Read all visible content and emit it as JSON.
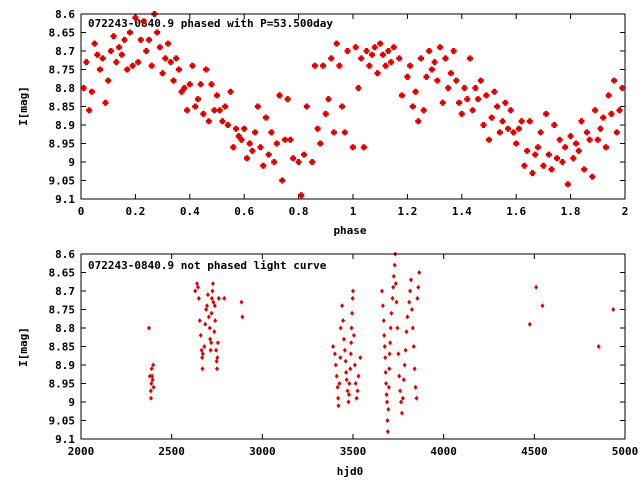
{
  "chart_data": [
    {
      "type": "scatter",
      "title": "072243-0840.9 phased with P=53.500day",
      "xlabel": "phase",
      "ylabel": "I[mag]",
      "xlim": [
        0,
        2
      ],
      "ylim": [
        9.1,
        8.6
      ],
      "y_inverted": true,
      "grid": false,
      "marker_color": "#e00000",
      "marker": "asterisk",
      "x_ticks": [
        "0",
        "0.2",
        "0.4",
        "0.6",
        "0.8",
        "1",
        "1.2",
        "1.4",
        "1.6",
        "1.8",
        "2"
      ],
      "x_tick_values": [
        0,
        0.2,
        0.4,
        0.6,
        0.8,
        1,
        1.2,
        1.4,
        1.6,
        1.8,
        2
      ],
      "y_ticks": [
        "8.6",
        "8.65",
        "8.7",
        "8.75",
        "8.8",
        "8.85",
        "8.9",
        "8.95",
        "9",
        "9.05",
        "9.1"
      ],
      "y_tick_values": [
        8.6,
        8.65,
        8.7,
        8.75,
        8.8,
        8.85,
        8.9,
        8.95,
        9.0,
        9.05,
        9.1
      ],
      "points": [
        [
          0.01,
          8.8
        ],
        [
          0.02,
          8.73
        ],
        [
          0.03,
          8.86
        ],
        [
          0.04,
          8.81
        ],
        [
          0.05,
          8.68
        ],
        [
          0.06,
          8.71
        ],
        [
          0.07,
          8.75
        ],
        [
          0.08,
          8.72
        ],
        [
          0.09,
          8.84
        ],
        [
          0.1,
          8.78
        ],
        [
          0.11,
          8.7
        ],
        [
          0.12,
          8.66
        ],
        [
          0.13,
          8.73
        ],
        [
          0.14,
          8.69
        ],
        [
          0.15,
          8.71
        ],
        [
          0.16,
          8.67
        ],
        [
          0.17,
          8.75
        ],
        [
          0.18,
          8.65
        ],
        [
          0.19,
          8.74
        ],
        [
          0.2,
          8.61
        ],
        [
          0.21,
          8.73
        ],
        [
          0.22,
          8.67
        ],
        [
          0.23,
          8.62
        ],
        [
          0.24,
          8.7
        ],
        [
          0.25,
          8.67
        ],
        [
          0.26,
          8.74
        ],
        [
          0.27,
          8.6
        ],
        [
          0.28,
          8.65
        ],
        [
          0.29,
          8.69
        ],
        [
          0.3,
          8.76
        ],
        [
          0.31,
          8.72
        ],
        [
          0.32,
          8.68
        ],
        [
          0.33,
          8.73
        ],
        [
          0.34,
          8.78
        ],
        [
          0.35,
          8.72
        ],
        [
          0.36,
          8.75
        ],
        [
          0.37,
          8.81
        ],
        [
          0.38,
          8.8
        ],
        [
          0.39,
          8.86
        ],
        [
          0.4,
          8.79
        ],
        [
          0.41,
          8.74
        ],
        [
          0.42,
          8.85
        ],
        [
          0.43,
          8.83
        ],
        [
          0.44,
          8.79
        ],
        [
          0.45,
          8.87
        ],
        [
          0.46,
          8.75
        ],
        [
          0.47,
          8.89
        ],
        [
          0.48,
          8.79
        ],
        [
          0.49,
          8.86
        ],
        [
          0.5,
          8.82
        ],
        [
          0.51,
          8.86
        ],
        [
          0.52,
          8.89
        ],
        [
          0.53,
          8.85
        ],
        [
          0.54,
          8.9
        ],
        [
          0.55,
          8.81
        ],
        [
          0.56,
          8.96
        ],
        [
          0.57,
          8.91
        ],
        [
          0.58,
          8.93
        ],
        [
          0.59,
          8.94
        ],
        [
          0.6,
          8.91
        ],
        [
          0.61,
          8.99
        ],
        [
          0.62,
          8.95
        ],
        [
          0.63,
          8.97
        ],
        [
          0.64,
          8.92
        ],
        [
          0.65,
          8.85
        ],
        [
          0.66,
          8.96
        ],
        [
          0.67,
          9.01
        ],
        [
          0.68,
          8.88
        ],
        [
          0.69,
          8.98
        ],
        [
          0.7,
          8.92
        ],
        [
          0.71,
          9.0
        ],
        [
          0.72,
          8.95
        ],
        [
          0.73,
          8.82
        ],
        [
          0.74,
          9.05
        ],
        [
          0.75,
          8.94
        ],
        [
          0.76,
          8.83
        ],
        [
          0.77,
          8.94
        ],
        [
          0.78,
          8.99
        ],
        [
          0.8,
          9.0
        ],
        [
          0.81,
          9.09
        ],
        [
          0.82,
          8.98
        ],
        [
          0.83,
          8.85
        ],
        [
          0.85,
          9.0
        ],
        [
          0.86,
          8.74
        ],
        [
          0.87,
          8.91
        ],
        [
          0.88,
          8.95
        ],
        [
          0.89,
          8.74
        ],
        [
          0.9,
          8.87
        ],
        [
          0.91,
          8.83
        ],
        [
          0.92,
          8.72
        ],
        [
          0.93,
          8.92
        ],
        [
          0.94,
          8.68
        ],
        [
          0.95,
          8.74
        ],
        [
          0.96,
          8.85
        ],
        [
          0.97,
          8.92
        ],
        [
          0.98,
          8.7
        ],
        [
          1.0,
          8.96
        ],
        [
          1.01,
          8.69
        ],
        [
          1.02,
          8.8
        ],
        [
          1.03,
          8.72
        ],
        [
          1.04,
          8.96
        ],
        [
          1.05,
          8.7
        ],
        [
          1.06,
          8.74
        ],
        [
          1.07,
          8.71
        ],
        [
          1.08,
          8.69
        ],
        [
          1.09,
          8.76
        ],
        [
          1.1,
          8.68
        ],
        [
          1.11,
          8.71
        ],
        [
          1.12,
          8.74
        ],
        [
          1.13,
          8.7
        ],
        [
          1.14,
          8.73
        ],
        [
          1.15,
          8.69
        ],
        [
          1.17,
          8.72
        ],
        [
          1.18,
          8.82
        ],
        [
          1.2,
          8.77
        ],
        [
          1.21,
          8.74
        ],
        [
          1.22,
          8.85
        ],
        [
          1.23,
          8.81
        ],
        [
          1.24,
          8.89
        ],
        [
          1.25,
          8.72
        ],
        [
          1.26,
          8.86
        ],
        [
          1.27,
          8.77
        ],
        [
          1.28,
          8.7
        ],
        [
          1.29,
          8.75
        ],
        [
          1.3,
          8.73
        ],
        [
          1.31,
          8.78
        ],
        [
          1.32,
          8.69
        ],
        [
          1.33,
          8.84
        ],
        [
          1.34,
          8.72
        ],
        [
          1.35,
          8.8
        ],
        [
          1.36,
          8.76
        ],
        [
          1.37,
          8.7
        ],
        [
          1.38,
          8.78
        ],
        [
          1.39,
          8.84
        ],
        [
          1.4,
          8.87
        ],
        [
          1.41,
          8.8
        ],
        [
          1.42,
          8.83
        ],
        [
          1.43,
          8.72
        ],
        [
          1.44,
          8.86
        ],
        [
          1.45,
          8.8
        ],
        [
          1.46,
          8.83
        ],
        [
          1.47,
          8.78
        ],
        [
          1.48,
          8.9
        ],
        [
          1.49,
          8.82
        ],
        [
          1.5,
          8.94
        ],
        [
          1.51,
          8.88
        ],
        [
          1.52,
          8.81
        ],
        [
          1.53,
          8.85
        ],
        [
          1.54,
          8.92
        ],
        [
          1.55,
          8.89
        ],
        [
          1.56,
          8.84
        ],
        [
          1.57,
          8.91
        ],
        [
          1.58,
          8.86
        ],
        [
          1.59,
          8.92
        ],
        [
          1.6,
          8.95
        ],
        [
          1.61,
          8.91
        ],
        [
          1.62,
          8.89
        ],
        [
          1.63,
          9.01
        ],
        [
          1.64,
          8.97
        ],
        [
          1.65,
          8.89
        ],
        [
          1.66,
          9.03
        ],
        [
          1.67,
          8.98
        ],
        [
          1.68,
          8.96
        ],
        [
          1.69,
          8.92
        ],
        [
          1.7,
          9.01
        ],
        [
          1.71,
          8.87
        ],
        [
          1.72,
          8.98
        ],
        [
          1.73,
          9.02
        ],
        [
          1.74,
          8.9
        ],
        [
          1.75,
          8.99
        ],
        [
          1.76,
          8.94
        ],
        [
          1.77,
          9.0
        ],
        [
          1.78,
          8.96
        ],
        [
          1.79,
          9.06
        ],
        [
          1.8,
          8.93
        ],
        [
          1.81,
          8.99
        ],
        [
          1.82,
          8.95
        ],
        [
          1.83,
          8.97
        ],
        [
          1.84,
          8.89
        ],
        [
          1.85,
          9.02
        ],
        [
          1.86,
          8.92
        ],
        [
          1.87,
          8.94
        ],
        [
          1.88,
          9.04
        ],
        [
          1.89,
          8.86
        ],
        [
          1.9,
          8.94
        ],
        [
          1.91,
          8.91
        ],
        [
          1.92,
          8.88
        ],
        [
          1.93,
          8.96
        ],
        [
          1.94,
          8.82
        ],
        [
          1.95,
          8.87
        ],
        [
          1.96,
          8.78
        ],
        [
          1.97,
          8.92
        ],
        [
          1.98,
          8.86
        ],
        [
          1.99,
          8.8
        ]
      ]
    },
    {
      "type": "scatter",
      "title": "072243-0840.9 not phased light curve",
      "xlabel": "hjd0",
      "ylabel": "I[mag]",
      "xlim": [
        2000,
        5000
      ],
      "ylim": [
        9.1,
        8.6
      ],
      "y_inverted": true,
      "grid": false,
      "marker_color": "#e00000",
      "marker": "diamond",
      "x_ticks": [
        "2000",
        "2500",
        "3000",
        "3500",
        "4000",
        "4500",
        "5000"
      ],
      "x_tick_values": [
        2000,
        2500,
        3000,
        3500,
        4000,
        4500,
        5000
      ],
      "y_ticks": [
        "8.6",
        "8.65",
        "8.7",
        "8.75",
        "8.8",
        "8.85",
        "8.9",
        "8.95",
        "9",
        "9.05",
        "9.1"
      ],
      "y_tick_values": [
        8.6,
        8.65,
        8.7,
        8.75,
        8.8,
        8.85,
        8.9,
        8.95,
        9.0,
        9.05,
        9.1
      ],
      "points": [
        [
          2375,
          8.8
        ],
        [
          2380,
          8.93
        ],
        [
          2385,
          8.97
        ],
        [
          2386,
          8.99
        ],
        [
          2388,
          8.95
        ],
        [
          2390,
          8.91
        ],
        [
          2392,
          8.93
        ],
        [
          2395,
          8.94
        ],
        [
          2398,
          8.9
        ],
        [
          2400,
          8.96
        ],
        [
          2630,
          8.7
        ],
        [
          2640,
          8.68
        ],
        [
          2645,
          8.69
        ],
        [
          2650,
          8.72
        ],
        [
          2655,
          8.78
        ],
        [
          2660,
          8.82
        ],
        [
          2665,
          8.86
        ],
        [
          2668,
          8.88
        ],
        [
          2670,
          8.91
        ],
        [
          2672,
          8.87
        ],
        [
          2680,
          8.85
        ],
        [
          2685,
          8.79
        ],
        [
          2690,
          8.75
        ],
        [
          2695,
          8.74
        ],
        [
          2700,
          8.71
        ],
        [
          2705,
          8.77
        ],
        [
          2710,
          8.8
        ],
        [
          2712,
          8.83
        ],
        [
          2715,
          8.86
        ],
        [
          2718,
          8.84
        ],
        [
          2720,
          8.76
        ],
        [
          2722,
          8.72
        ],
        [
          2725,
          8.7
        ],
        [
          2728,
          8.68
        ],
        [
          2730,
          8.73
        ],
        [
          2735,
          8.81
        ],
        [
          2738,
          8.74
        ],
        [
          2740,
          8.78
        ],
        [
          2745,
          8.86
        ],
        [
          2748,
          8.89
        ],
        [
          2750,
          8.91
        ],
        [
          2752,
          8.88
        ],
        [
          2755,
          8.84
        ],
        [
          2760,
          8.72
        ],
        [
          2790,
          8.72
        ],
        [
          2885,
          8.73
        ],
        [
          2890,
          8.77
        ],
        [
          3390,
          8.85
        ],
        [
          3400,
          8.87
        ],
        [
          3405,
          8.9
        ],
        [
          3410,
          8.93
        ],
        [
          3415,
          8.96
        ],
        [
          3418,
          8.99
        ],
        [
          3420,
          9.01
        ],
        [
          3425,
          8.95
        ],
        [
          3430,
          8.88
        ],
        [
          3432,
          8.8
        ],
        [
          3440,
          8.74
        ],
        [
          3445,
          8.78
        ],
        [
          3450,
          8.83
        ],
        [
          3455,
          8.86
        ],
        [
          3460,
          8.89
        ],
        [
          3462,
          8.92
        ],
        [
          3465,
          8.94
        ],
        [
          3470,
          8.97
        ],
        [
          3475,
          9.0
        ],
        [
          3478,
          8.98
        ],
        [
          3480,
          8.95
        ],
        [
          3485,
          8.91
        ],
        [
          3488,
          8.87
        ],
        [
          3490,
          8.84
        ],
        [
          3492,
          8.8
        ],
        [
          3495,
          8.76
        ],
        [
          3498,
          8.72
        ],
        [
          3500,
          8.7
        ],
        [
          3505,
          8.82
        ],
        [
          3510,
          8.9
        ],
        [
          3515,
          8.95
        ],
        [
          3520,
          8.99
        ],
        [
          3525,
          8.97
        ],
        [
          3530,
          8.93
        ],
        [
          3540,
          8.88
        ],
        [
          3660,
          8.7
        ],
        [
          3665,
          8.74
        ],
        [
          3670,
          8.78
        ],
        [
          3672,
          8.82
        ],
        [
          3675,
          8.85
        ],
        [
          3678,
          8.88
        ],
        [
          3680,
          8.92
        ],
        [
          3682,
          8.95
        ],
        [
          3685,
          8.98
        ],
        [
          3688,
          9.0
        ],
        [
          3690,
          9.05
        ],
        [
          3692,
          9.08
        ],
        [
          3695,
          9.02
        ],
        [
          3698,
          8.96
        ],
        [
          3700,
          8.91
        ],
        [
          3702,
          8.87
        ],
        [
          3705,
          8.84
        ],
        [
          3708,
          8.8
        ],
        [
          3712,
          8.76
        ],
        [
          3718,
          8.72
        ],
        [
          3722,
          8.69
        ],
        [
          3725,
          8.66
        ],
        [
          3730,
          8.63
        ],
        [
          3733,
          8.6
        ],
        [
          3736,
          8.68
        ],
        [
          3740,
          8.73
        ],
        [
          3745,
          8.8
        ],
        [
          3750,
          8.87
        ],
        [
          3755,
          8.93
        ],
        [
          3760,
          8.97
        ],
        [
          3765,
          9.0
        ],
        [
          3770,
          9.03
        ],
        [
          3775,
          8.99
        ],
        [
          3780,
          8.94
        ],
        [
          3785,
          8.9
        ],
        [
          3790,
          8.86
        ],
        [
          3795,
          8.81
        ],
        [
          3800,
          8.77
        ],
        [
          3810,
          8.73
        ],
        [
          3815,
          8.7
        ],
        [
          3820,
          8.67
        ],
        [
          3825,
          8.75
        ],
        [
          3830,
          8.8
        ],
        [
          3835,
          8.85
        ],
        [
          3840,
          8.91
        ],
        [
          3845,
          8.96
        ],
        [
          3850,
          8.99
        ],
        [
          3855,
          8.72
        ],
        [
          3860,
          8.69
        ],
        [
          3865,
          8.65
        ],
        [
          4475,
          8.79
        ],
        [
          4510,
          8.69
        ],
        [
          4545,
          8.74
        ],
        [
          4855,
          8.85
        ],
        [
          4935,
          8.75
        ]
      ]
    }
  ]
}
